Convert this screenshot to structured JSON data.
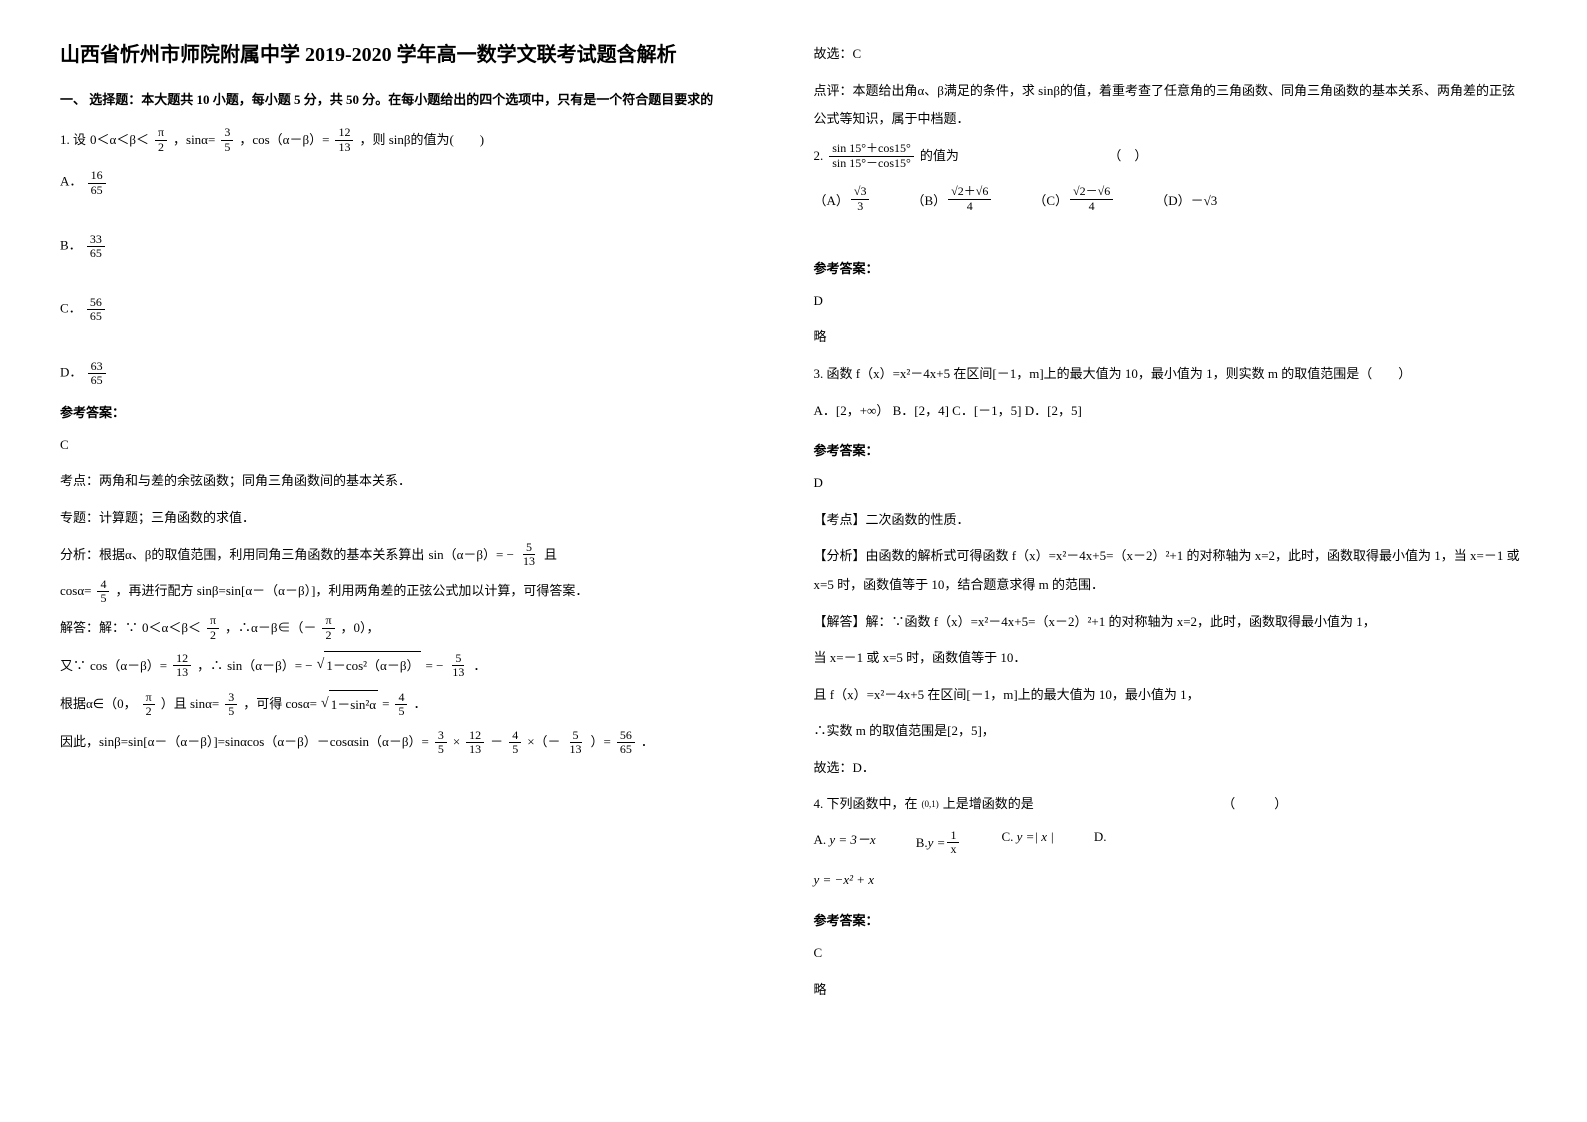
{
  "title": "山西省忻州市师院附属中学 2019-2020 学年高一数学文联考试题含解析",
  "section1_header": "一、 选择题：本大题共 10 小题，每小题 5 分，共 50 分。在每小题给出的四个选项中，只有是一个符合题目要求的",
  "q1": {
    "prefix": "1. 设",
    "cond1_a": "0＜α＜β＜",
    "cond1_frac_num": "π",
    "cond1_frac_den": "2",
    "cond2": "，sinα=",
    "cond2_frac_num": "3",
    "cond2_frac_den": "5",
    "cond3": "，cos（α－β）=",
    "cond3_frac_num": "12",
    "cond3_frac_den": "13",
    "tail": "，则 sinβ的值为(　　)",
    "optA_label": "A．",
    "optA_num": "16",
    "optA_den": "65",
    "optB_label": "B．",
    "optB_num": "33",
    "optB_den": "65",
    "optC_label": "C．",
    "optC_num": "56",
    "optC_den": "65",
    "optD_label": "D．",
    "optD_num": "63",
    "optD_den": "65",
    "answer_label": "参考答案：",
    "answer": "C",
    "kaodian": "考点：两角和与差的余弦函数；同角三角函数间的基本关系．",
    "zhuanti": "专题：计算题；三角函数的求值．",
    "fenxi_pre": "分析：根据α、β的取值范围，利用同角三角函数的基本关系算出",
    "fenxi_sin": "sin（α－β）= −",
    "fenxi_sin_num": "5",
    "fenxi_sin_den": "13",
    "fenxi_and": "且",
    "fenxi_cos": "cosα=",
    "fenxi_cos_num": "4",
    "fenxi_cos_den": "5",
    "fenxi_tail": "，再进行配方 sinβ=sin[α－（α－β）]，利用两角差的正弦公式加以计算，可得答案．",
    "jieda_label": "解答：解：∵",
    "jieda1_a": "0＜α＜β＜",
    "jieda1_num": "π",
    "jieda1_den": "2",
    "jieda1_b": "，∴α－β∈（－",
    "jieda1_c_num": "π",
    "jieda1_c_den": "2",
    "jieda1_d": "，0），",
    "jieda2_a": "又∵",
    "jieda2_b": "cos（α－β）=",
    "jieda2_b_num": "12",
    "jieda2_b_den": "13",
    "jieda2_c": "，∴",
    "jieda2_d": "sin（α－β）= −",
    "jieda2_sqrt": "1－cos²（α－β）",
    "jieda2_e": " = −",
    "jieda2_e_num": "5",
    "jieda2_e_den": "13",
    "jieda2_f": "．",
    "jieda3_a": "根据α∈（0，",
    "jieda3_a_num": "π",
    "jieda3_a_den": "2",
    "jieda3_b": "）且 sinα=",
    "jieda3_b_num": "3",
    "jieda3_b_den": "5",
    "jieda3_c": "，可得 cosα=",
    "jieda3_sqrt": "1－sin²α",
    "jieda3_d": "=",
    "jieda3_d_num": "4",
    "jieda3_d_den": "5",
    "jieda3_e": "．",
    "jieda4_a": "因此，sinβ=sin[α－（α－β）]=sinαcos（α－β）－cosαsin（α－β）=",
    "jieda4_f1_num": "3",
    "jieda4_f1_den": "5",
    "jieda4_x1": "×",
    "jieda4_f2_num": "12",
    "jieda4_f2_den": "13",
    "jieda4_minus": "－",
    "jieda4_f3_num": "4",
    "jieda4_f3_den": "5",
    "jieda4_x2": "×（－",
    "jieda4_f4_num": "5",
    "jieda4_f4_den": "13",
    "jieda4_b": "）=",
    "jieda4_f5_num": "56",
    "jieda4_f5_den": "65",
    "jieda4_c": "．",
    "guxuan": "故选：C",
    "dianping": "点评：本题给出角α、β满足的条件，求 sinβ的值，着重考查了任意角的三角函数、同角三角函数的基本关系、两角差的正弦公式等知识，属于中档题．"
  },
  "q2": {
    "prefix": "2. ",
    "frac_num": "sin 15°＋cos15°",
    "frac_den": "sin 15°－cos15°",
    "tail": " 的值为　　　　　　　　　　　　（　）",
    "optA_label": "（A）",
    "optA_num": "√3",
    "optA_den": "3",
    "optB_label": "（B）",
    "optB_num": "√2＋√6",
    "optB_den": "4",
    "optC_label": "（C）",
    "optC_num": "√2－√6",
    "optC_den": "4",
    "optD_label": "（D）",
    "optD_val": "－√3",
    "answer_label": "参考答案：",
    "answer": "D",
    "lue": "略"
  },
  "q3": {
    "text": "3. 函数 f（x）=x²－4x+5 在区间[－1，m]上的最大值为 10，最小值为 1，则实数 m 的取值范围是（　　）",
    "options": "A．[2，+∞）  B．[2，4]    C．[－1，5]   D．[2，5]",
    "answer_label": "参考答案：",
    "answer": "D",
    "kaodian": "【考点】二次函数的性质．",
    "fenxi": "【分析】由函数的解析式可得函数 f（x）=x²－4x+5=（x－2）²+1 的对称轴为 x=2，此时，函数取得最小值为 1，当 x=－1 或 x=5 时，函数值等于 10，结合题意求得 m 的范围．",
    "jieda1": "【解答】解：∵函数 f（x）=x²－4x+5=（x－2）²+1 的对称轴为 x=2，此时，函数取得最小值为 1，",
    "jieda2": "当 x=－1 或 x=5 时，函数值等于 10．",
    "jieda3": "且 f（x）=x²－4x+5 在区间[－1，m]上的最大值为 10，最小值为 1，",
    "jieda4": "∴实数 m 的取值范围是[2，5]，",
    "guxuan": "故选：D．"
  },
  "q4": {
    "prefix": "4. 下列函数中，在",
    "interval": "(0,1)",
    "tail": " 上是增函数的是　　　　　　　　　　　　　　　（　　　）",
    "optA_label": "A. ",
    "optA": "y = 3－x",
    "optB_label": "B. ",
    "optB_num": "1",
    "optB_den": "x",
    "optB_pre": "y = ",
    "optC_label": "C. ",
    "optC": "y =| x |",
    "optD_label": "D.",
    "optD": "y = −x² + x",
    "answer_label": "参考答案：",
    "answer": "C",
    "lue": "略"
  }
}
